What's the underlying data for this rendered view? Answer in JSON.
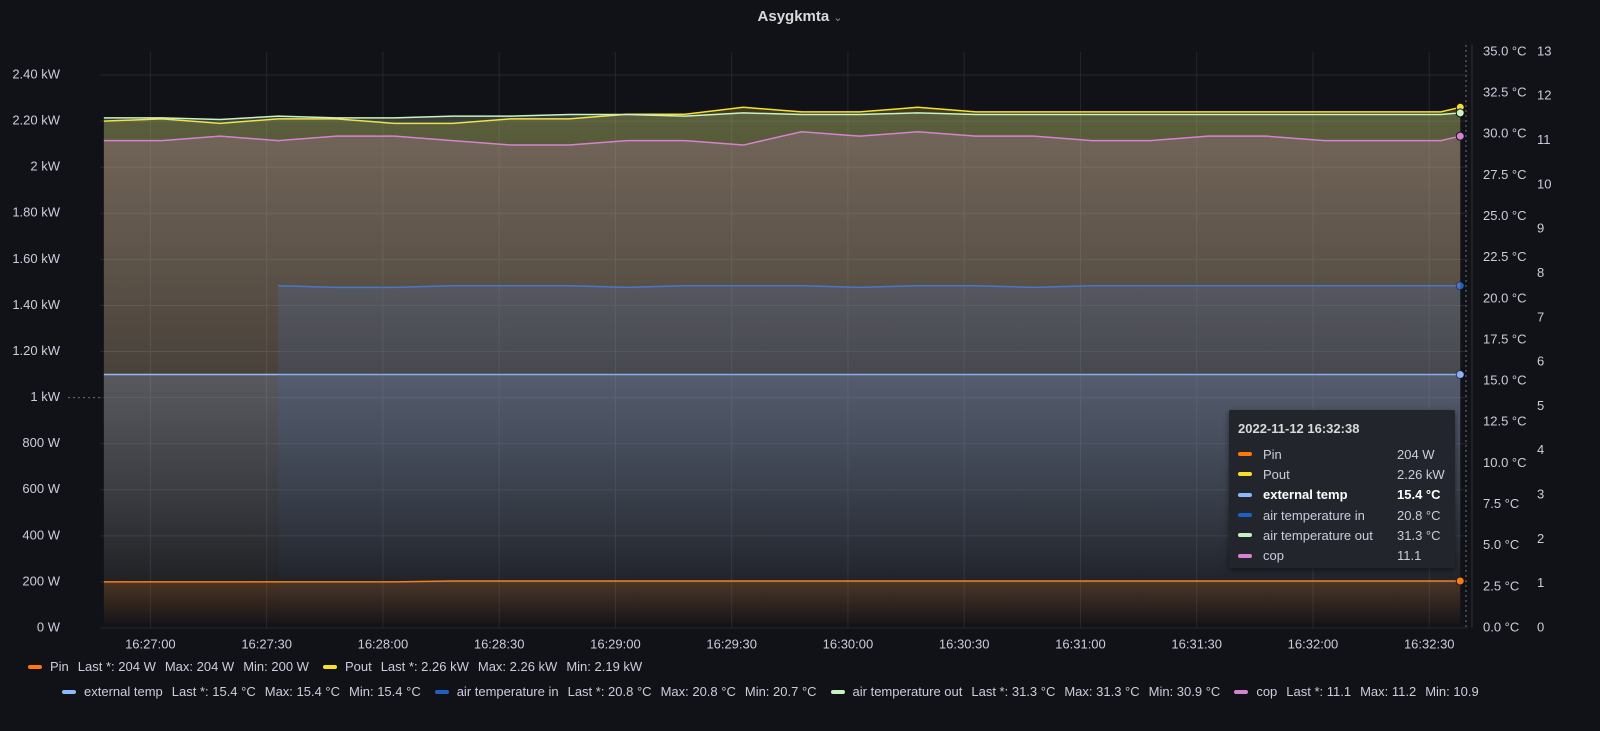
{
  "chart_data": {
    "type": "line",
    "title": "Asygkmta",
    "x": [
      "16:26:48",
      "16:27:03",
      "16:27:18",
      "16:27:33",
      "16:27:48",
      "16:28:03",
      "16:28:18",
      "16:28:33",
      "16:28:48",
      "16:29:03",
      "16:29:18",
      "16:29:33",
      "16:29:48",
      "16:30:03",
      "16:30:18",
      "16:30:33",
      "16:30:48",
      "16:31:03",
      "16:31:18",
      "16:31:33",
      "16:31:48",
      "16:32:03",
      "16:32:18",
      "16:32:33",
      "16:32:38"
    ],
    "xlim": [
      "16:26:47",
      "16:32:40"
    ],
    "xticks": [
      "16:27:00",
      "16:27:30",
      "16:28:00",
      "16:28:30",
      "16:29:00",
      "16:29:30",
      "16:30:00",
      "16:30:30",
      "16:31:00",
      "16:31:30",
      "16:32:00",
      "16:32:30"
    ],
    "ylim": [
      0,
      2500
    ],
    "yticks": [
      {
        "value": 0,
        "label": "0 W"
      },
      {
        "value": 200,
        "label": "200 W"
      },
      {
        "value": 400,
        "label": "400 W"
      },
      {
        "value": 600,
        "label": "600 W"
      },
      {
        "value": 800,
        "label": "800 W"
      },
      {
        "value": 1000,
        "label": "1 kW"
      },
      {
        "value": 1200,
        "label": "1.20 kW"
      },
      {
        "value": 1400,
        "label": "1.40 kW"
      },
      {
        "value": 1600,
        "label": "1.60 kW"
      },
      {
        "value": 1800,
        "label": "1.80 kW"
      },
      {
        "value": 2000,
        "label": "2 kW"
      },
      {
        "value": 2200,
        "label": "2.20 kW"
      },
      {
        "value": 2400,
        "label": "2.40 kW"
      }
    ],
    "y2lim": [
      0,
      35
    ],
    "y2ticks": [
      {
        "value": 0,
        "label": "0.0 °C"
      },
      {
        "value": 2.5,
        "label": "2.5 °C"
      },
      {
        "value": 5,
        "label": "5.0 °C"
      },
      {
        "value": 7.5,
        "label": "7.5 °C"
      },
      {
        "value": 10,
        "label": "10.0 °C"
      },
      {
        "value": 12.5,
        "label": "12.5 °C"
      },
      {
        "value": 15,
        "label": "15.0 °C"
      },
      {
        "value": 17.5,
        "label": "17.5 °C"
      },
      {
        "value": 20,
        "label": "20.0 °C"
      },
      {
        "value": 22.5,
        "label": "22.5 °C"
      },
      {
        "value": 25,
        "label": "25.0 °C"
      },
      {
        "value": 27.5,
        "label": "27.5 °C"
      },
      {
        "value": 30,
        "label": "30.0 °C"
      },
      {
        "value": 32.5,
        "label": "32.5 °C"
      },
      {
        "value": 35,
        "label": "35.0 °C"
      }
    ],
    "y3lim": [
      0,
      13
    ],
    "y3ticks": [
      0,
      1,
      2,
      3,
      4,
      5,
      6,
      7,
      8,
      9,
      10,
      11,
      12,
      13
    ],
    "grid": true,
    "series": [
      {
        "name": "Pin",
        "color": "#ff780a",
        "axis": "y",
        "stats": [
          "Last *: 204 W",
          "Max: 204 W",
          "Min: 200 W"
        ],
        "values": [
          200,
          200,
          200,
          200,
          200,
          200,
          204,
          204,
          204,
          204,
          204,
          204,
          204,
          204,
          204,
          204,
          204,
          204,
          204,
          204,
          204,
          204,
          204,
          204,
          204
        ]
      },
      {
        "name": "Pout",
        "color": "#fade2a",
        "axis": "y",
        "stats": [
          "Last *: 2.26 kW",
          "Max: 2.26 kW",
          "Min: 2.19 kW"
        ],
        "values": [
          2200,
          2210,
          2190,
          2210,
          2210,
          2190,
          2190,
          2210,
          2210,
          2230,
          2230,
          2260,
          2240,
          2240,
          2260,
          2240,
          2240,
          2240,
          2240,
          2240,
          2240,
          2240,
          2240,
          2240,
          2260
        ]
      },
      {
        "name": "external temp",
        "color": "#8ab8ff",
        "axis": "y2",
        "stats": [
          "Last *: 15.4 °C",
          "Max: 15.4 °C",
          "Min: 15.4 °C"
        ],
        "values": [
          15.4,
          15.4,
          15.4,
          15.4,
          15.4,
          15.4,
          15.4,
          15.4,
          15.4,
          15.4,
          15.4,
          15.4,
          15.4,
          15.4,
          15.4,
          15.4,
          15.4,
          15.4,
          15.4,
          15.4,
          15.4,
          15.4,
          15.4,
          15.4,
          15.4
        ]
      },
      {
        "name": "air temperature in",
        "color": "#1f60c4",
        "axis": "y2",
        "stats": [
          "Last *: 20.8 °C",
          "Max: 20.8 °C",
          "Min: 20.7 °C"
        ],
        "values": [
          null,
          null,
          null,
          20.8,
          20.7,
          20.7,
          20.8,
          20.8,
          20.8,
          20.7,
          20.8,
          20.8,
          20.8,
          20.7,
          20.8,
          20.8,
          20.7,
          20.8,
          20.8,
          20.8,
          20.8,
          20.8,
          20.8,
          20.8,
          20.8
        ]
      },
      {
        "name": "air temperature out",
        "color": "#c8f2c2",
        "axis": "y2",
        "stats": [
          "Last *: 31.3 °C",
          "Max: 31.3 °C",
          "Min: 30.9 °C"
        ],
        "values": [
          31.0,
          31.0,
          30.9,
          31.1,
          31.0,
          31.0,
          31.1,
          31.1,
          31.2,
          31.2,
          31.1,
          31.3,
          31.2,
          31.2,
          31.3,
          31.2,
          31.2,
          31.2,
          31.2,
          31.2,
          31.2,
          31.2,
          31.2,
          31.2,
          31.3
        ]
      },
      {
        "name": "cop",
        "color": "#d683ce",
        "axis": "y3",
        "stats": [
          "Last *: 11.1",
          "Max: 11.2",
          "Min: 10.9"
        ],
        "values": [
          11.0,
          11.0,
          11.1,
          11.0,
          11.1,
          11.1,
          11.0,
          10.9,
          10.9,
          11.0,
          11.0,
          10.9,
          11.2,
          11.1,
          11.2,
          11.1,
          11.1,
          11.0,
          11.0,
          11.1,
          11.1,
          11.0,
          11.0,
          11.0,
          11.1
        ]
      }
    ],
    "tooltip": {
      "time": "2022-11-12 16:32:38",
      "values": [
        "204 W",
        "2.26 kW",
        "15.4 °C",
        "20.8 °C",
        "31.3 °C",
        "11.1"
      ],
      "highlight": 2
    }
  }
}
